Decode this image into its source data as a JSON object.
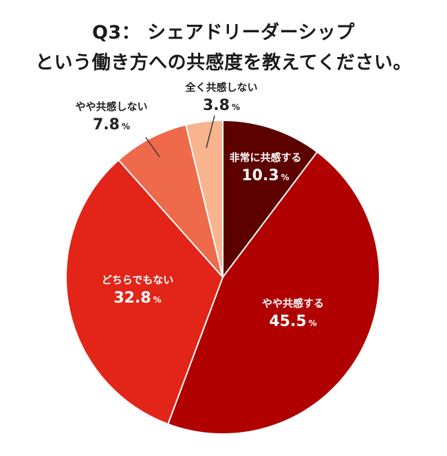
{
  "chart_data": {
    "type": "pie",
    "title": [
      "Q3： シェアドリーダーシップ",
      "という働き方への共感度を教えてください。"
    ],
    "categories": [
      "非常に共感する",
      "やや共感する",
      "どちらでもない",
      "やや共感しない",
      "全く共感しない"
    ],
    "values": [
      10.3,
      45.5,
      32.8,
      7.8,
      3.8
    ],
    "value_strings": [
      "10.3",
      "45.5",
      "32.8",
      "7.8",
      "3.8"
    ],
    "unit": "%",
    "colors": [
      "#5c0000",
      "#b00000",
      "#e32418",
      "#ee6a4a",
      "#f7b48e"
    ],
    "label_colors": [
      "#ffffff",
      "#ffffff",
      "#ffffff",
      "#222222",
      "#222222"
    ]
  }
}
